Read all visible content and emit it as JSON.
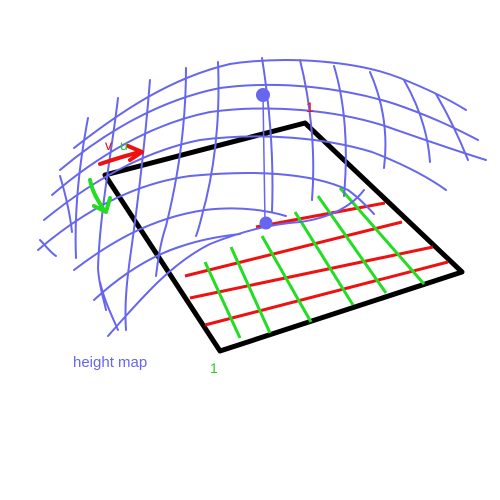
{
  "labels": {
    "v": "v",
    "u": "u",
    "one_top": "1",
    "one_bottom": "1",
    "caption": "height map"
  },
  "colors": {
    "mesh": "#6666ee",
    "frame": "#000000",
    "u_lines": "#ee1111",
    "v_lines": "#22dd22",
    "point": "#6666ee",
    "caption": "#6666ee",
    "label_red": "#ee1111",
    "label_green": "#22cc22"
  }
}
